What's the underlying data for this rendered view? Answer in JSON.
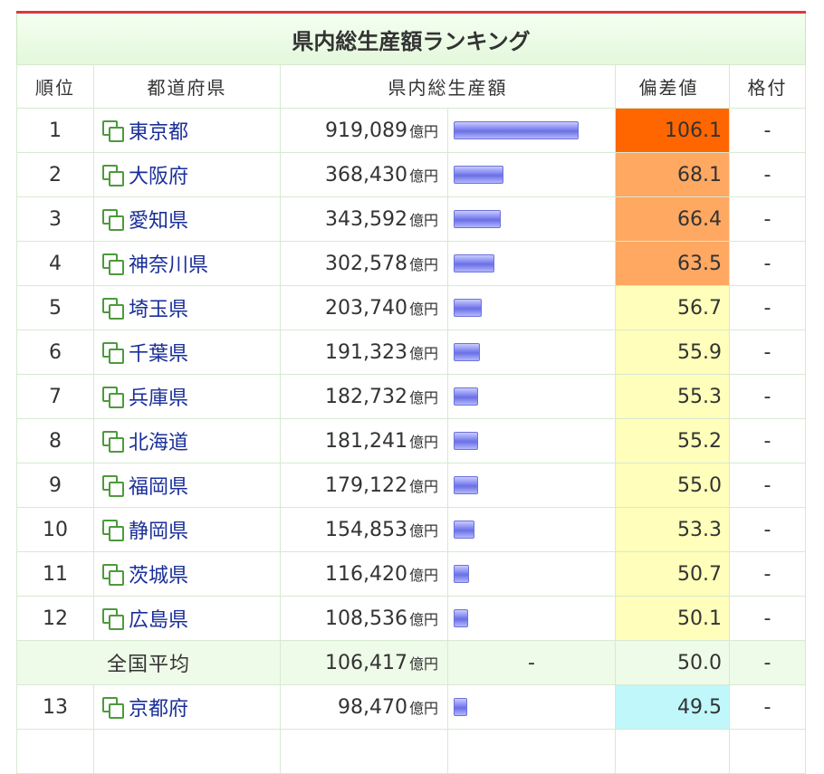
{
  "title": "県内総生産額ランキング",
  "headers": {
    "rank": "順位",
    "prefecture": "都道府県",
    "value": "県内総生産額",
    "deviation": "偏差値",
    "grade": "格付"
  },
  "unit": "億円",
  "rows": [
    {
      "rank": "1",
      "pref": "東京都",
      "value": "919,089",
      "amount": 919089,
      "dev": "106.1",
      "dev_color": "#ff6600",
      "grade": "-"
    },
    {
      "rank": "2",
      "pref": "大阪府",
      "value": "368,430",
      "amount": 368430,
      "dev": "68.1",
      "dev_color": "#ffa862",
      "grade": "-"
    },
    {
      "rank": "3",
      "pref": "愛知県",
      "value": "343,592",
      "amount": 343592,
      "dev": "66.4",
      "dev_color": "#ffa862",
      "grade": "-"
    },
    {
      "rank": "4",
      "pref": "神奈川県",
      "value": "302,578",
      "amount": 302578,
      "dev": "63.5",
      "dev_color": "#ffa862",
      "grade": "-"
    },
    {
      "rank": "5",
      "pref": "埼玉県",
      "value": "203,740",
      "amount": 203740,
      "dev": "56.7",
      "dev_color": "#ffffbb",
      "grade": "-"
    },
    {
      "rank": "6",
      "pref": "千葉県",
      "value": "191,323",
      "amount": 191323,
      "dev": "55.9",
      "dev_color": "#ffffbb",
      "grade": "-"
    },
    {
      "rank": "7",
      "pref": "兵庫県",
      "value": "182,732",
      "amount": 182732,
      "dev": "55.3",
      "dev_color": "#ffffbb",
      "grade": "-"
    },
    {
      "rank": "8",
      "pref": "北海道",
      "value": "181,241",
      "amount": 181241,
      "dev": "55.2",
      "dev_color": "#ffffbb",
      "grade": "-"
    },
    {
      "rank": "9",
      "pref": "福岡県",
      "value": "179,122",
      "amount": 179122,
      "dev": "55.0",
      "dev_color": "#ffffbb",
      "grade": "-"
    },
    {
      "rank": "10",
      "pref": "静岡県",
      "value": "154,853",
      "amount": 154853,
      "dev": "53.3",
      "dev_color": "#ffffbb",
      "grade": "-"
    },
    {
      "rank": "11",
      "pref": "茨城県",
      "value": "116,420",
      "amount": 116420,
      "dev": "50.7",
      "dev_color": "#ffffbb",
      "grade": "-"
    },
    {
      "rank": "12",
      "pref": "広島県",
      "value": "108,536",
      "amount": 108536,
      "dev": "50.1",
      "dev_color": "#ffffbb",
      "grade": "-"
    }
  ],
  "average": {
    "label": "全国平均",
    "value": "106,417",
    "bar": "-",
    "dev": "50.0",
    "grade": "-"
  },
  "rows_after": [
    {
      "rank": "13",
      "pref": "京都府",
      "value": "98,470",
      "amount": 98470,
      "dev": "49.5",
      "dev_color": "#bff7fb",
      "grade": "-"
    }
  ],
  "colors": {
    "top_line": "#d93a3a",
    "bar": "#7b80ee",
    "link": "#1a2f99",
    "icon": "#4c9a3b",
    "average_row_bg": "#eefbe9"
  },
  "icons": {
    "pref_link": "copy-squares-icon"
  }
}
